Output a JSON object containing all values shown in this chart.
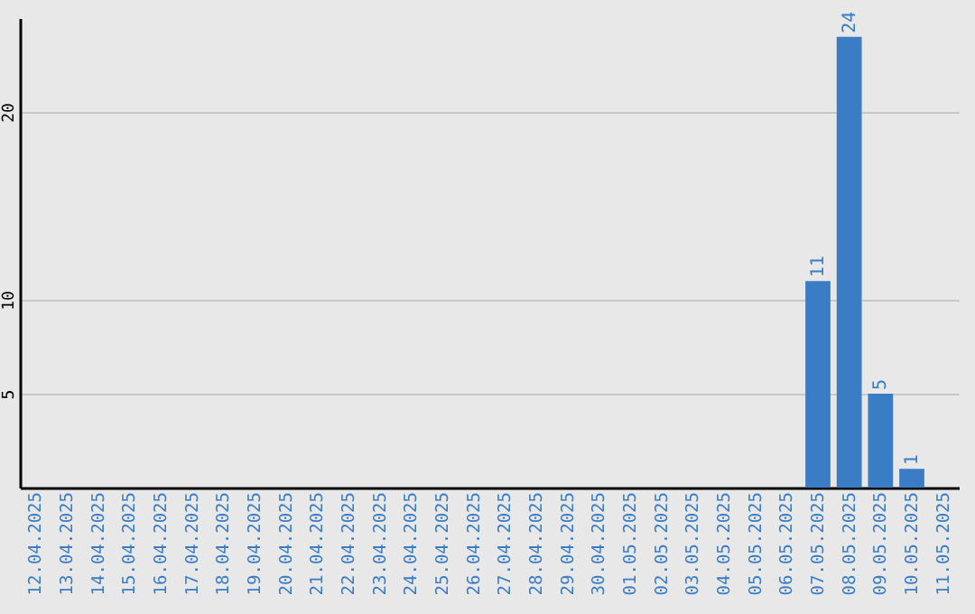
{
  "chart_data": {
    "type": "bar",
    "categories": [
      "12.04.2025",
      "13.04.2025",
      "14.04.2025",
      "15.04.2025",
      "16.04.2025",
      "17.04.2025",
      "18.04.2025",
      "19.04.2025",
      "20.04.2025",
      "21.04.2025",
      "22.04.2025",
      "23.04.2025",
      "24.04.2025",
      "25.04.2025",
      "26.04.2025",
      "27.04.2025",
      "28.04.2025",
      "29.04.2025",
      "30.04.2025",
      "01.05.2025",
      "02.05.2025",
      "03.05.2025",
      "04.05.2025",
      "05.05.2025",
      "06.05.2025",
      "07.05.2025",
      "08.05.2025",
      "09.05.2025",
      "10.05.2025",
      "11.05.2025"
    ],
    "values": [
      0,
      0,
      0,
      0,
      0,
      0,
      0,
      0,
      0,
      0,
      0,
      0,
      0,
      0,
      0,
      0,
      0,
      0,
      0,
      0,
      0,
      0,
      0,
      0,
      0,
      11,
      24,
      5,
      1,
      0
    ],
    "value_labels": [
      null,
      null,
      null,
      null,
      null,
      null,
      null,
      null,
      null,
      null,
      null,
      null,
      null,
      null,
      null,
      null,
      null,
      null,
      null,
      null,
      null,
      null,
      null,
      null,
      null,
      "11",
      "24",
      "5",
      "1",
      null
    ],
    "color": "#3b7dc4",
    "ylim": [
      0,
      25
    ],
    "yticks": [
      5,
      10,
      20
    ],
    "grid": "y"
  }
}
